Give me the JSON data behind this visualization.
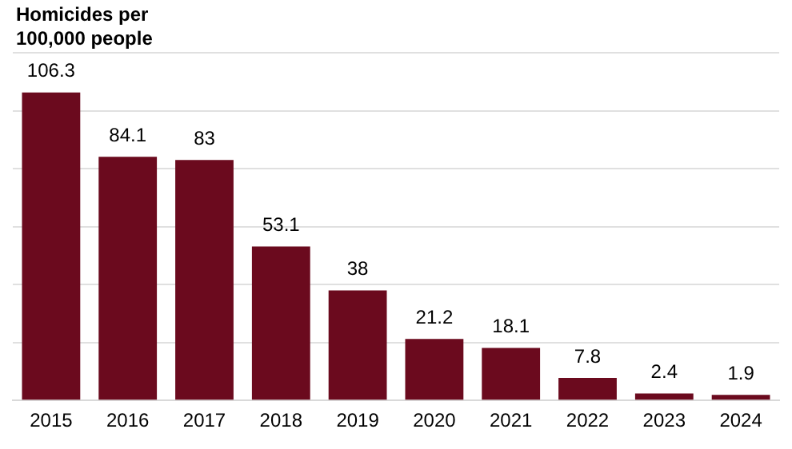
{
  "chart_data": {
    "type": "bar",
    "ylabel": "Homicides per 100,000 people",
    "categories": [
      "2015",
      "2016",
      "2017",
      "2018",
      "2019",
      "2020",
      "2021",
      "2022",
      "2023",
      "2024"
    ],
    "values": [
      106.3,
      84.1,
      83,
      53.1,
      38,
      21.2,
      18.1,
      7.8,
      2.4,
      1.9
    ],
    "color": "#6b0a1e",
    "ylim": [
      0,
      120
    ],
    "yticks": [
      {
        "value": 0,
        "label": null
      },
      {
        "value": 20,
        "label": null
      },
      {
        "value": 40,
        "label": null
      },
      {
        "value": 60,
        "label": null
      },
      {
        "value": 80,
        "label": null
      },
      {
        "value": 100,
        "label": null
      },
      {
        "value": 120,
        "label": null
      }
    ],
    "grid": "y",
    "tick_labels": "x",
    "data_labels": true
  }
}
